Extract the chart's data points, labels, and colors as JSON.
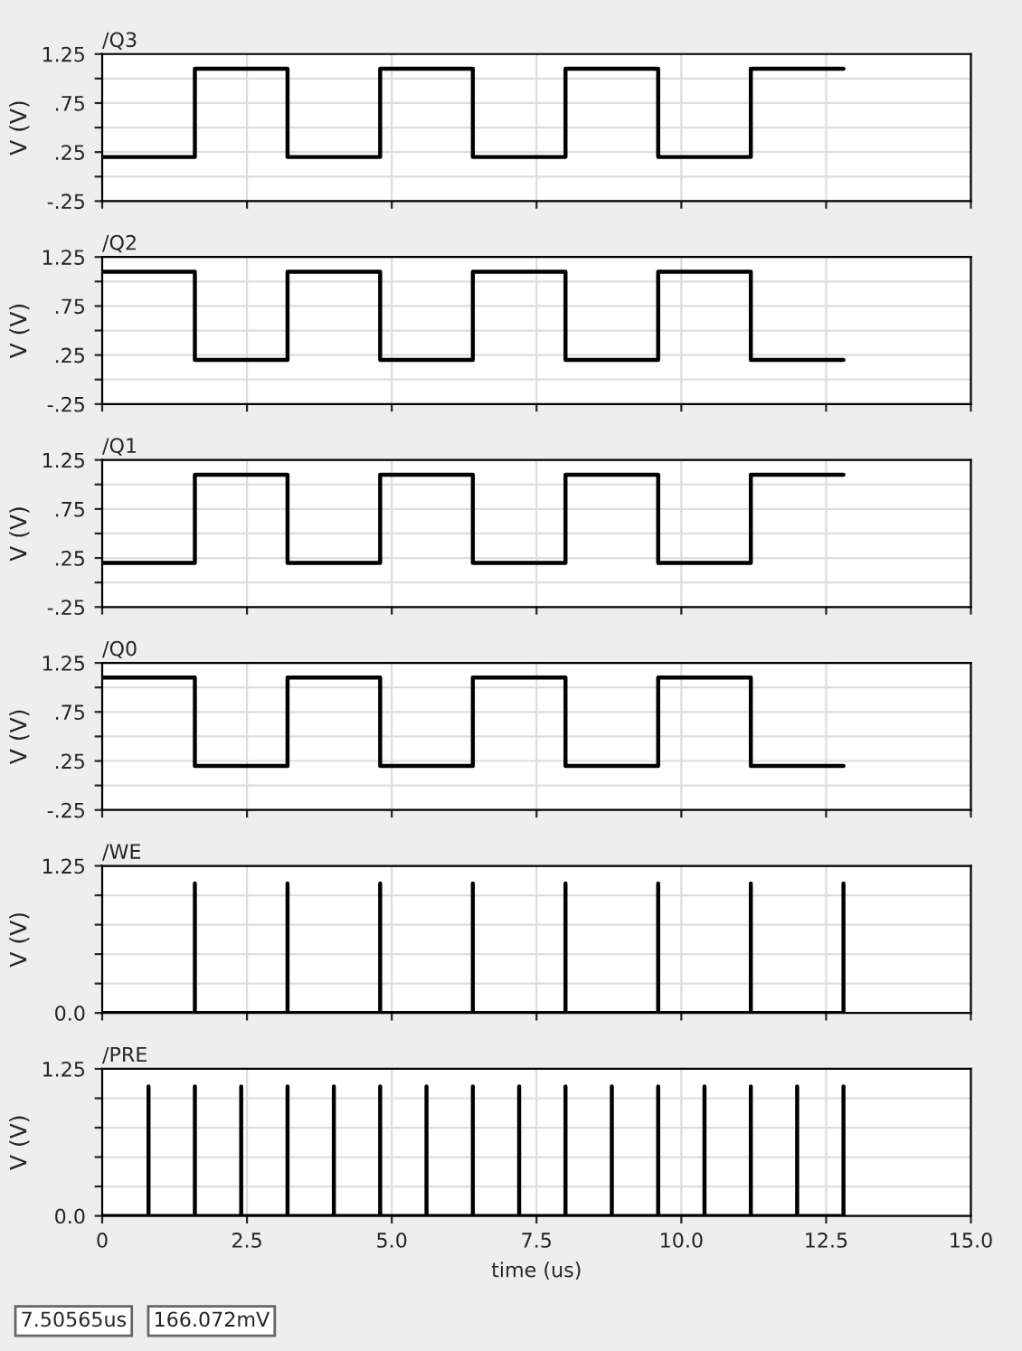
{
  "chart_data": [
    {
      "type": "step",
      "title": "/Q3",
      "ylabel": "V (V)",
      "xlim": [
        0,
        15
      ],
      "ylim": [
        -0.25,
        1.25
      ],
      "yticks": [
        {
          "value": -0.25,
          "label": "-.25"
        },
        {
          "value": 0,
          "label": null
        },
        {
          "value": 0.25,
          "label": ".25"
        },
        {
          "value": 0.5,
          "label": null
        },
        {
          "value": 0.75,
          "label": ".75"
        },
        {
          "value": 1.0,
          "label": null
        },
        {
          "value": 1.25,
          "label": "1.25"
        }
      ],
      "tick_labels": "y",
      "grid": true,
      "x": [
        0,
        1.6,
        3.2,
        4.8,
        6.4,
        8.0,
        9.6,
        11.2,
        12.8
      ],
      "series": [
        {
          "color": "#000000",
          "values": [
            0.2,
            1.1,
            0.2,
            1.1,
            0.2,
            1.1,
            0.2,
            1.1,
            1.1
          ]
        }
      ]
    },
    {
      "type": "step",
      "title": "/Q2",
      "ylabel": "V (V)",
      "xlim": [
        0,
        15
      ],
      "ylim": [
        -0.25,
        1.25
      ],
      "yticks": [
        {
          "value": -0.25,
          "label": "-.25"
        },
        {
          "value": 0,
          "label": null
        },
        {
          "value": 0.25,
          "label": ".25"
        },
        {
          "value": 0.5,
          "label": null
        },
        {
          "value": 0.75,
          "label": ".75"
        },
        {
          "value": 1.0,
          "label": null
        },
        {
          "value": 1.25,
          "label": "1.25"
        }
      ],
      "tick_labels": "y",
      "grid": true,
      "x": [
        0,
        1.6,
        3.2,
        4.8,
        6.4,
        8.0,
        9.6,
        11.2,
        12.8
      ],
      "series": [
        {
          "color": "#000000",
          "values": [
            1.1,
            0.2,
            1.1,
            0.2,
            1.1,
            0.2,
            1.1,
            0.2,
            0.2
          ]
        }
      ]
    },
    {
      "type": "step",
      "title": "/Q1",
      "ylabel": "V (V)",
      "xlim": [
        0,
        15
      ],
      "ylim": [
        -0.25,
        1.25
      ],
      "yticks": [
        {
          "value": -0.25,
          "label": "-.25"
        },
        {
          "value": 0,
          "label": null
        },
        {
          "value": 0.25,
          "label": ".25"
        },
        {
          "value": 0.5,
          "label": null
        },
        {
          "value": 0.75,
          "label": ".75"
        },
        {
          "value": 1.0,
          "label": null
        },
        {
          "value": 1.25,
          "label": "1.25"
        }
      ],
      "tick_labels": "y",
      "grid": true,
      "x": [
        0,
        1.6,
        3.2,
        4.8,
        6.4,
        8.0,
        9.6,
        11.2,
        12.8
      ],
      "series": [
        {
          "color": "#000000",
          "values": [
            0.2,
            1.1,
            0.2,
            1.1,
            0.2,
            1.1,
            0.2,
            1.1,
            1.1
          ]
        }
      ]
    },
    {
      "type": "step",
      "title": "/Q0",
      "ylabel": "V (V)",
      "xlim": [
        0,
        15
      ],
      "ylim": [
        -0.25,
        1.25
      ],
      "yticks": [
        {
          "value": -0.25,
          "label": "-.25"
        },
        {
          "value": 0,
          "label": null
        },
        {
          "value": 0.25,
          "label": ".25"
        },
        {
          "value": 0.5,
          "label": null
        },
        {
          "value": 0.75,
          "label": ".75"
        },
        {
          "value": 1.0,
          "label": null
        },
        {
          "value": 1.25,
          "label": "1.25"
        }
      ],
      "tick_labels": "y",
      "grid": true,
      "x": [
        0,
        1.6,
        3.2,
        4.8,
        6.4,
        8.0,
        9.6,
        11.2,
        12.8
      ],
      "series": [
        {
          "color": "#000000",
          "values": [
            1.1,
            0.2,
            1.1,
            0.2,
            1.1,
            0.2,
            1.1,
            0.2,
            0.2
          ]
        }
      ]
    },
    {
      "type": "line",
      "title": "/WE",
      "ylabel": "V (V)",
      "xlim": [
        0,
        15
      ],
      "ylim": [
        0,
        1.25
      ],
      "yticks": [
        {
          "value": 0,
          "label": "0.0"
        },
        {
          "value": 0.25,
          "label": null
        },
        {
          "value": 0.5,
          "label": null
        },
        {
          "value": 0.75,
          "label": null
        },
        {
          "value": 1.0,
          "label": null
        },
        {
          "value": 1.25,
          "label": "1.25"
        }
      ],
      "tick_labels": "y",
      "grid": true,
      "x": [
        0,
        1.6,
        1.6,
        1.6,
        3.2,
        3.2,
        3.2,
        4.8,
        4.8,
        4.8,
        6.4,
        6.4,
        6.4,
        8.0,
        8.0,
        8.0,
        9.6,
        9.6,
        9.6,
        11.2,
        11.2,
        11.2,
        12.8,
        12.8,
        12.8
      ],
      "series": [
        {
          "color": "#000000",
          "values": [
            0,
            0,
            1.1,
            0,
            0,
            1.1,
            0,
            0,
            1.1,
            0,
            0,
            1.1,
            0,
            0,
            1.1,
            0,
            0,
            1.1,
            0,
            0,
            1.1,
            0,
            0,
            1.1,
            0
          ]
        }
      ]
    },
    {
      "type": "line",
      "title": "/PRE",
      "ylabel": "V (V)",
      "xlabel": "time (us)",
      "xlim": [
        0,
        15
      ],
      "xticks": [
        0,
        2.5,
        {
          "value": 5,
          "label": "5.0"
        },
        7.5,
        {
          "value": 10,
          "label": "10.0"
        },
        12.5,
        {
          "value": 15,
          "label": "15.0"
        }
      ],
      "ylim": [
        0,
        1.25
      ],
      "yticks": [
        {
          "value": 0,
          "label": "0.0"
        },
        {
          "value": 0.25,
          "label": null
        },
        {
          "value": 0.5,
          "label": null
        },
        {
          "value": 0.75,
          "label": null
        },
        {
          "value": 1.0,
          "label": null
        },
        {
          "value": 1.25,
          "label": "1.25"
        }
      ],
      "grid": true,
      "x": [
        0,
        0.8,
        0.8,
        0.8,
        1.6,
        1.6,
        1.6,
        2.4,
        2.4,
        2.4,
        3.2,
        3.2,
        3.2,
        4.0,
        4.0,
        4.0,
        4.8,
        4.8,
        4.8,
        5.6,
        5.6,
        5.6,
        6.4,
        6.4,
        6.4,
        7.2,
        7.2,
        7.2,
        8.0,
        8.0,
        8.0,
        8.8,
        8.8,
        8.8,
        9.6,
        9.6,
        9.6,
        10.4,
        10.4,
        10.4,
        11.2,
        11.2,
        11.2,
        12.0,
        12.0,
        12.0,
        12.8,
        12.8,
        12.8
      ],
      "series": [
        {
          "color": "#000000",
          "values": [
            0,
            0,
            1.1,
            0,
            0,
            1.1,
            0,
            0,
            1.1,
            0,
            0,
            1.1,
            0,
            0,
            1.1,
            0,
            0,
            1.1,
            0,
            0,
            1.1,
            0,
            0,
            1.1,
            0,
            0,
            1.1,
            0,
            0,
            1.1,
            0,
            0,
            1.1,
            0,
            0,
            1.1,
            0,
            0,
            1.1,
            0,
            0,
            1.1,
            0,
            0,
            1.1,
            0,
            0,
            1.1,
            0
          ]
        }
      ],
      "annotations": [
        "7.50565us",
        "166.072mV"
      ]
    }
  ]
}
